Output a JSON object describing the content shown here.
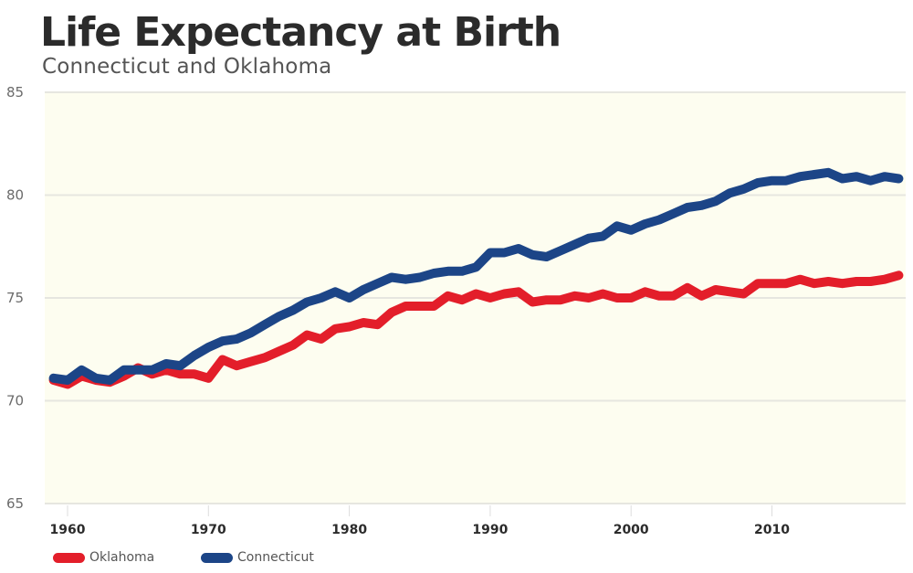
{
  "chart_data": {
    "type": "line",
    "title": "Life Expectancy at Birth",
    "subtitle": "Connecticut and Oklahoma",
    "xlabel": "",
    "ylabel": "",
    "xlim": [
      1959,
      2019
    ],
    "ylim": [
      65,
      85
    ],
    "yticks": [
      65,
      70,
      75,
      80,
      85
    ],
    "xticks": [
      1960,
      1970,
      1980,
      1990,
      2000,
      2010
    ],
    "grid": true,
    "legend_position": "bottom-left",
    "x": [
      1959,
      1960,
      1961,
      1962,
      1963,
      1964,
      1965,
      1966,
      1967,
      1968,
      1969,
      1970,
      1971,
      1972,
      1973,
      1974,
      1975,
      1976,
      1977,
      1978,
      1979,
      1980,
      1981,
      1982,
      1983,
      1984,
      1985,
      1986,
      1987,
      1988,
      1989,
      1990,
      1991,
      1992,
      1993,
      1994,
      1995,
      1996,
      1997,
      1998,
      1999,
      2000,
      2001,
      2002,
      2003,
      2004,
      2005,
      2006,
      2007,
      2008,
      2009,
      2010,
      2011,
      2012,
      2013,
      2014,
      2015,
      2016,
      2017,
      2018,
      2019
    ],
    "series": [
      {
        "name": "Oklahoma",
        "color": "#e31e2a",
        "values": [
          71.0,
          70.8,
          71.2,
          71.0,
          70.9,
          71.2,
          71.6,
          71.3,
          71.5,
          71.3,
          71.3,
          71.1,
          72.0,
          71.7,
          71.9,
          72.1,
          72.4,
          72.7,
          73.2,
          73.0,
          73.5,
          73.6,
          73.8,
          73.7,
          74.3,
          74.6,
          74.6,
          74.6,
          75.1,
          74.9,
          75.2,
          75.0,
          75.2,
          75.3,
          74.8,
          74.9,
          74.9,
          75.1,
          75.0,
          75.2,
          75.0,
          75.0,
          75.3,
          75.1,
          75.1,
          75.5,
          75.1,
          75.4,
          75.3,
          75.2,
          75.7,
          75.7,
          75.7,
          75.9,
          75.7,
          75.8,
          75.7,
          75.8,
          75.8,
          75.9,
          76.1
        ]
      },
      {
        "name": "Connecticut",
        "color": "#1c4587",
        "values": [
          71.1,
          71.0,
          71.5,
          71.1,
          71.0,
          71.5,
          71.5,
          71.5,
          71.8,
          71.7,
          72.2,
          72.6,
          72.9,
          73.0,
          73.3,
          73.7,
          74.1,
          74.4,
          74.8,
          75.0,
          75.3,
          75.0,
          75.4,
          75.7,
          76.0,
          75.9,
          76.0,
          76.2,
          76.3,
          76.3,
          76.5,
          77.2,
          77.2,
          77.4,
          77.1,
          77.0,
          77.3,
          77.6,
          77.9,
          78.0,
          78.5,
          78.3,
          78.6,
          78.8,
          79.1,
          79.4,
          79.5,
          79.7,
          80.1,
          80.3,
          80.6,
          80.7,
          80.7,
          80.9,
          81.0,
          81.1,
          80.8,
          80.9,
          80.7,
          80.9,
          80.8
        ]
      }
    ]
  },
  "colors": {
    "plot_background": "#fdfdf0",
    "grid": "#e6e6e0",
    "title": "#2b2b2b"
  }
}
